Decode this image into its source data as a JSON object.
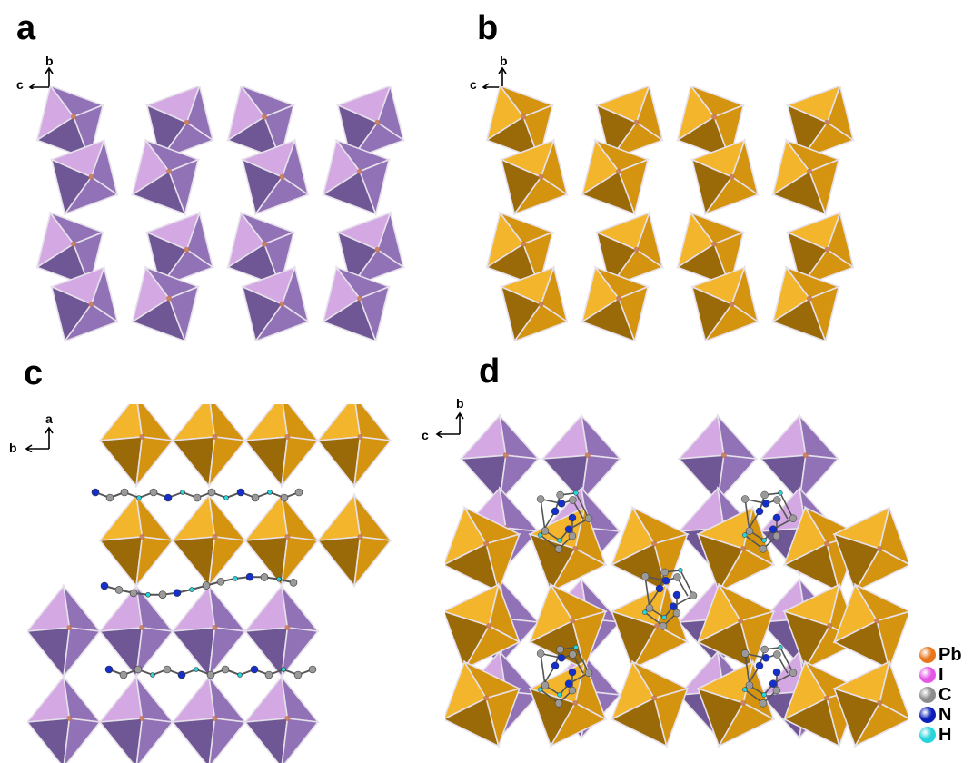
{
  "panels": {
    "a": {
      "letter": "a",
      "axis_up": "b",
      "axis_left": "c"
    },
    "b": {
      "letter": "b",
      "axis_up": "b",
      "axis_left": "c"
    },
    "c": {
      "letter": "c",
      "axis_up": "a",
      "axis_left": "b"
    },
    "d": {
      "letter": "d",
      "axis_up": "b",
      "axis_left": "c"
    }
  },
  "colors": {
    "purple_light": "#d4a9e3",
    "purple_mid": "#9272b7",
    "purple_dark": "#6e5794",
    "orange_light": "#f3b52c",
    "orange_mid": "#d4940f",
    "orange_dark": "#9a6a08",
    "edge": "#e6e0ea"
  },
  "legend": [
    {
      "label": "Pb",
      "color": "#e8751a",
      "icon": "lead-atom-icon"
    },
    {
      "label": "I",
      "color": "#e457e6",
      "icon": "iodine-atom-icon"
    },
    {
      "label": "C",
      "color": "#8c8c8c",
      "icon": "carbon-atom-icon"
    },
    {
      "label": "N",
      "color": "#0b1fb8",
      "icon": "nitrogen-atom-icon"
    },
    {
      "label": "H",
      "color": "#27d4dc",
      "icon": "hydrogen-atom-icon"
    }
  ]
}
